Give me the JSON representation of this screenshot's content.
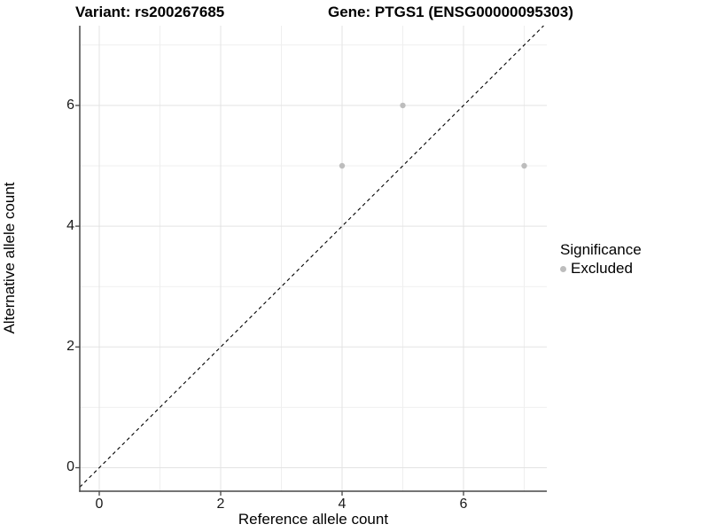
{
  "header": {
    "variant_title": "Variant: rs200267685",
    "gene_title": "Gene: PTGS1 (ENSG00000095303)"
  },
  "axes": {
    "x_label": "Reference allele count",
    "y_label": "Alternative allele count",
    "x_ticks": [
      "0",
      "2",
      "4",
      "6"
    ],
    "y_ticks": [
      "0",
      "2",
      "4",
      "6"
    ]
  },
  "legend": {
    "title": "Significance",
    "items": [
      {
        "label": "Excluded",
        "color": "#bdbdbd"
      }
    ]
  },
  "chart_data": {
    "type": "scatter",
    "title": "Variant: rs200267685  |  Gene: PTGS1 (ENSG00000095303)",
    "xlabel": "Reference allele count",
    "ylabel": "Alternative allele count",
    "xlim": [
      -0.35,
      7.35
    ],
    "ylim": [
      -0.4,
      7.35
    ],
    "x_major_ticks": [
      0,
      2,
      4,
      6
    ],
    "x_minor_ticks": [
      1,
      3,
      5,
      7
    ],
    "y_major_ticks": [
      0,
      2,
      4,
      6
    ],
    "y_minor_ticks": [
      1,
      3,
      5,
      7
    ],
    "grid": true,
    "legend_position": "right",
    "series": [
      {
        "name": "Excluded",
        "color": "#bdbdbd",
        "points": [
          {
            "x": 4,
            "y": 5
          },
          {
            "x": 5,
            "y": 6
          },
          {
            "x": 7,
            "y": 5
          }
        ]
      }
    ],
    "identity_line": {
      "type": "y=x",
      "style": "dashed",
      "color": "#000000"
    }
  },
  "colors": {
    "grid_major": "#e3e3e3",
    "grid_minor": "#efefef",
    "axis_line": "#464646",
    "point": "#bdbdbd",
    "background": "#ffffff"
  }
}
